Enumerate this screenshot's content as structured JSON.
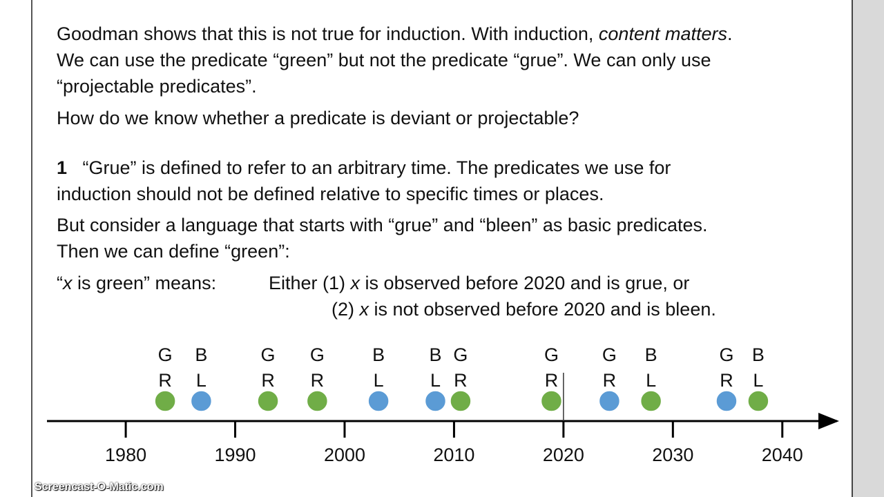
{
  "slide": {
    "lines": [
      [
        {
          "text": "Goodman shows that this is not true for induction. With induction, "
        },
        {
          "text": "content matters",
          "style": "italic"
        },
        {
          "text": "."
        }
      ],
      [
        {
          "text": "We can use the predicate “green” but not the predicate “grue”. We can only use"
        }
      ],
      [
        {
          "text": "“projectable predicates”."
        }
      ],
      [
        {
          "text": "How do we know whether a predicate is deviant or projectable?"
        }
      ],
      [
        {
          "text": "1",
          "style": "bold"
        },
        {
          "text": "   “Grue” is defined to refer to an arbitrary time. The predicates we use for"
        }
      ],
      [
        {
          "text": "induction should not be defined relative to specific times or places."
        }
      ],
      [
        {
          "text": "But consider a language that starts with “grue” and “bleen” as basic predicates."
        }
      ],
      [
        {
          "text": "Then we can define “green”:"
        }
      ],
      [
        {
          "text": "“"
        },
        {
          "text": "x",
          "style": "italic"
        },
        {
          "text": " is green” means:"
        }
      ],
      [
        {
          "text": "Either (1) "
        },
        {
          "text": "x",
          "style": "italic"
        },
        {
          "text": " is observed before 2020 and is grue, or"
        }
      ],
      [
        {
          "text": "(2) "
        },
        {
          "text": "x",
          "style": "italic"
        },
        {
          "text": " is not observed before 2020 and is bleen."
        }
      ]
    ],
    "timeline": {
      "xlim": [
        1972.8,
        2045
      ],
      "xticks": [
        1980,
        1990,
        2000,
        2010,
        2020,
        2030,
        2040
      ],
      "divider": 2020,
      "points": [
        {
          "x": 1983.6,
          "label": [
            "G",
            "R"
          ],
          "color": "#70ad47"
        },
        {
          "x": 1986.9,
          "label": [
            "B",
            "L"
          ],
          "color": "#5b9bd5"
        },
        {
          "x": 1993.0,
          "label": [
            "G",
            "R"
          ],
          "color": "#70ad47"
        },
        {
          "x": 1997.5,
          "label": [
            "G",
            "R"
          ],
          "color": "#70ad47"
        },
        {
          "x": 2003.1,
          "label": [
            "B",
            "L"
          ],
          "color": "#5b9bd5"
        },
        {
          "x": 2008.3,
          "label": [
            "B",
            "L"
          ],
          "color": "#5b9bd5"
        },
        {
          "x": 2010.6,
          "label": [
            "G",
            "R"
          ],
          "color": "#70ad47"
        },
        {
          "x": 2018.9,
          "label": [
            "G",
            "R"
          ],
          "color": "#70ad47"
        },
        {
          "x": 2024.2,
          "label": [
            "G",
            "R"
          ],
          "color": "#5b9bd5"
        },
        {
          "x": 2028.0,
          "label": [
            "B",
            "L"
          ],
          "color": "#70ad47"
        },
        {
          "x": 2034.9,
          "label": [
            "G",
            "R"
          ],
          "color": "#5b9bd5"
        },
        {
          "x": 2037.8,
          "label": [
            "B",
            "L"
          ],
          "color": "#70ad47"
        }
      ]
    },
    "watermark": "Screencast-O-Matic.com"
  }
}
